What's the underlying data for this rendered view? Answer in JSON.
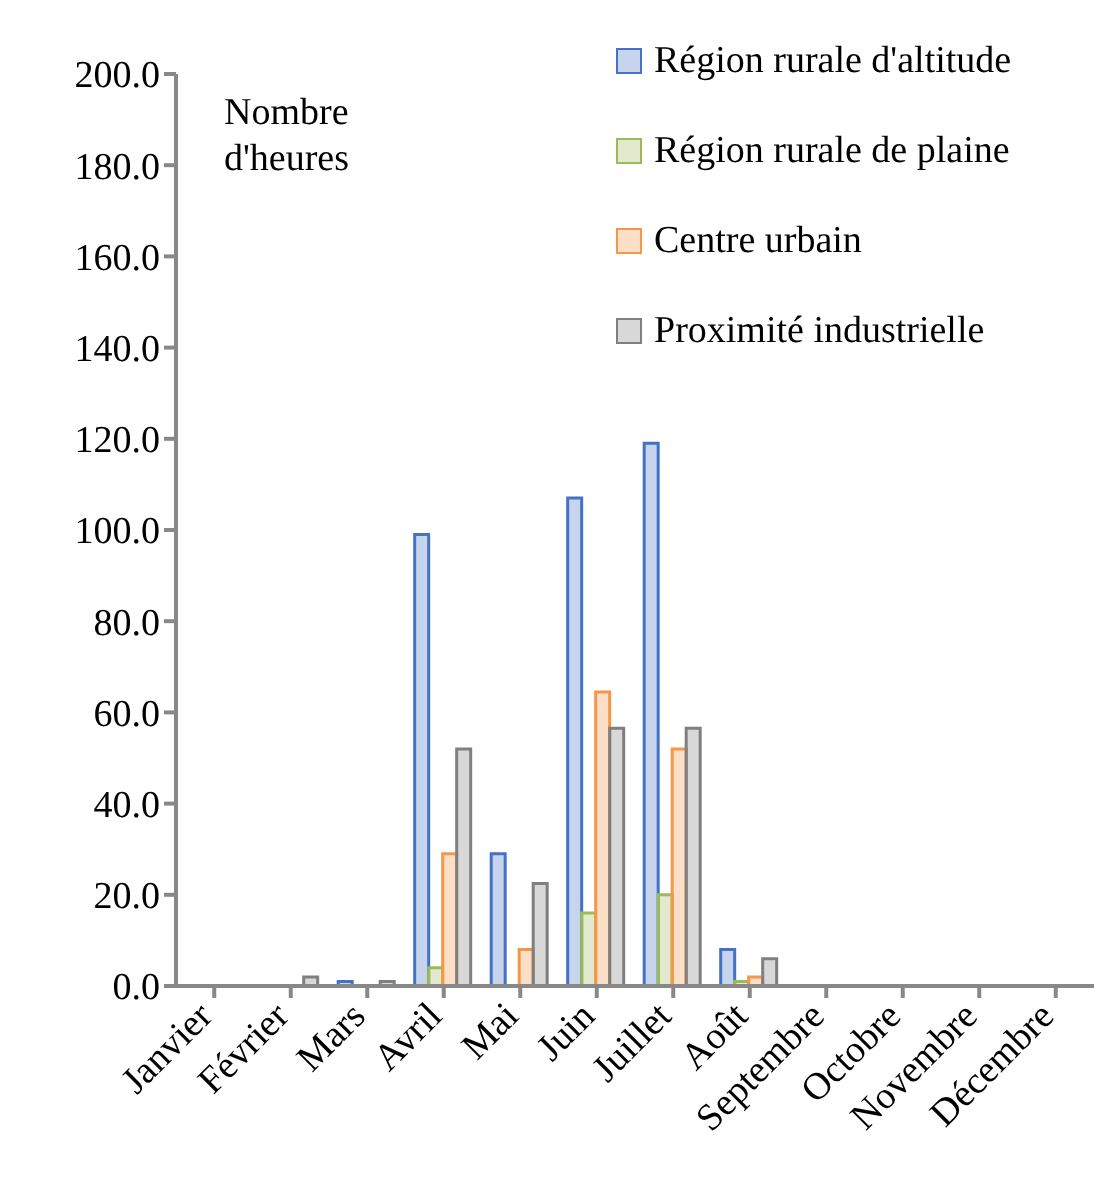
{
  "chart_data": {
    "type": "bar",
    "ylabel": "Nombre d'heures",
    "categories": [
      "Janvier",
      "Février",
      "Mars",
      "Avril",
      "Mai",
      "Juin",
      "Juillet",
      "Août",
      "Septembre",
      "Octobre",
      "Novembre",
      "Décembre"
    ],
    "series": [
      {
        "name": "Région rurale d'altitude",
        "color": "#4472c4",
        "values": [
          0,
          0,
          1,
          99,
          29,
          107,
          119,
          8,
          0,
          0,
          0,
          0
        ]
      },
      {
        "name": "Région rurale de plaine",
        "color": "#9bbb59",
        "values": [
          0,
          0,
          0,
          4,
          0,
          16,
          20,
          1,
          0,
          0,
          0,
          0
        ]
      },
      {
        "name": "Centre urbain",
        "color": "#f79646",
        "values": [
          0,
          0,
          0,
          29,
          8,
          64.5,
          52,
          2,
          0,
          0,
          0,
          0
        ]
      },
      {
        "name": "Proximité industrielle",
        "color": "#7f7f7f",
        "values": [
          0,
          2,
          1,
          52,
          22.5,
          56.5,
          56.5,
          6,
          0,
          0,
          0,
          0
        ]
      }
    ],
    "ylim": [
      0,
      200
    ],
    "yticks": [
      {
        "value": 0,
        "label": "0.0"
      },
      {
        "value": 20,
        "label": "20.0"
      },
      {
        "value": 40,
        "label": "40.0"
      },
      {
        "value": 60,
        "label": "60.0"
      },
      {
        "value": 80,
        "label": "80.0"
      },
      {
        "value": 100,
        "label": "100.0"
      },
      {
        "value": 120,
        "label": "120.0"
      },
      {
        "value": 140,
        "label": "140.0"
      },
      {
        "value": 160,
        "label": "160.0"
      },
      {
        "value": 180,
        "label": "180.0"
      },
      {
        "value": 200,
        "label": "200.0"
      }
    ],
    "grid": false,
    "legend": "top right"
  }
}
